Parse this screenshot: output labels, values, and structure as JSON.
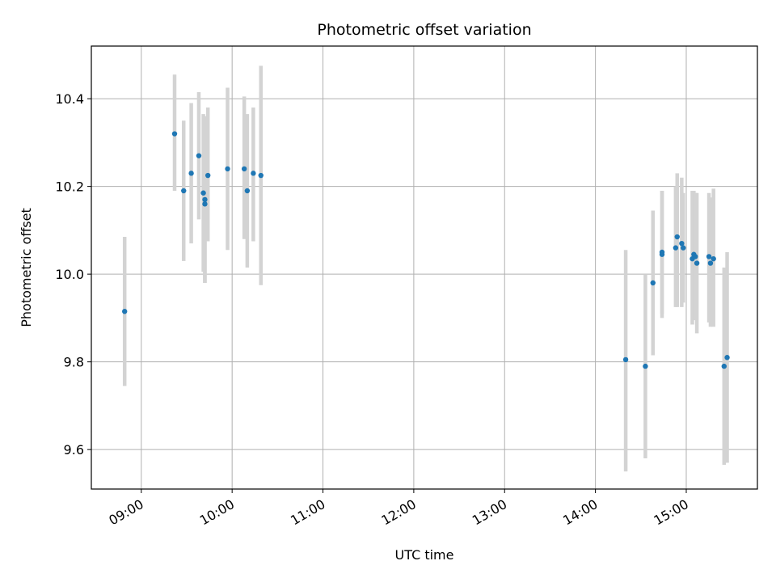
{
  "chart_data": {
    "type": "scatter",
    "title": "Photometric offset variation",
    "xlabel": "UTC time",
    "ylabel": "Photometric offset",
    "x_unit": "UTC time of day (HH:MM)",
    "xlim": [
      "08:27",
      "15:47"
    ],
    "ylim": [
      9.51,
      10.52
    ],
    "xticks": [
      "09:00",
      "10:00",
      "11:00",
      "12:00",
      "13:00",
      "14:00",
      "15:00"
    ],
    "yticks": [
      9.6,
      9.8,
      10.0,
      10.2,
      10.4
    ],
    "grid": true,
    "legend": "none",
    "colors": {
      "point": "#1f77b4",
      "errorbar": "#d3d3d3",
      "grid": "#b0b0b0",
      "axes": "#000000"
    },
    "series": [
      {
        "points": [
          {
            "x": "08:49",
            "y": 9.915,
            "yerr_low": 9.745,
            "yerr_high": 10.085
          },
          {
            "x": "09:22",
            "y": 10.32,
            "yerr_low": 10.19,
            "yerr_high": 10.455
          },
          {
            "x": "09:28",
            "y": 10.19,
            "yerr_low": 10.03,
            "yerr_high": 10.35
          },
          {
            "x": "09:33",
            "y": 10.23,
            "yerr_low": 10.07,
            "yerr_high": 10.39
          },
          {
            "x": "09:38",
            "y": 10.27,
            "yerr_low": 10.125,
            "yerr_high": 10.415
          },
          {
            "x": "09:41",
            "y": 10.185,
            "yerr_low": 10.005,
            "yerr_high": 10.365
          },
          {
            "x": "09:42",
            "y": 10.17,
            "yerr_low": 9.98,
            "yerr_high": 10.36
          },
          {
            "x": "09:42",
            "y": 10.16,
            "yerr_low": 9.98,
            "yerr_high": 10.34
          },
          {
            "x": "09:44",
            "y": 10.225,
            "yerr_low": 10.075,
            "yerr_high": 10.38
          },
          {
            "x": "09:57",
            "y": 10.24,
            "yerr_low": 10.055,
            "yerr_high": 10.425
          },
          {
            "x": "10:08",
            "y": 10.24,
            "yerr_low": 10.08,
            "yerr_high": 10.405
          },
          {
            "x": "10:10",
            "y": 10.19,
            "yerr_low": 10.015,
            "yerr_high": 10.365
          },
          {
            "x": "10:14",
            "y": 10.23,
            "yerr_low": 10.075,
            "yerr_high": 10.38
          },
          {
            "x": "10:19",
            "y": 10.225,
            "yerr_low": 9.975,
            "yerr_high": 10.475
          },
          {
            "x": "14:20",
            "y": 9.805,
            "yerr_low": 9.55,
            "yerr_high": 10.055
          },
          {
            "x": "14:33",
            "y": 9.79,
            "yerr_low": 9.58,
            "yerr_high": 10.0
          },
          {
            "x": "14:38",
            "y": 9.98,
            "yerr_low": 9.815,
            "yerr_high": 10.145
          },
          {
            "x": "14:44",
            "y": 10.045,
            "yerr_low": 9.9,
            "yerr_high": 10.19
          },
          {
            "x": "14:44",
            "y": 10.05,
            "yerr_low": 9.91,
            "yerr_high": 10.19
          },
          {
            "x": "14:53",
            "y": 10.06,
            "yerr_low": 9.925,
            "yerr_high": 10.2
          },
          {
            "x": "14:54",
            "y": 10.085,
            "yerr_low": 9.925,
            "yerr_high": 10.23
          },
          {
            "x": "14:57",
            "y": 10.07,
            "yerr_low": 9.925,
            "yerr_high": 10.22
          },
          {
            "x": "14:58",
            "y": 10.06,
            "yerr_low": 9.935,
            "yerr_high": 10.185
          },
          {
            "x": "15:04",
            "y": 10.035,
            "yerr_low": 9.885,
            "yerr_high": 10.19
          },
          {
            "x": "15:05",
            "y": 10.045,
            "yerr_low": 9.9,
            "yerr_high": 10.19
          },
          {
            "x": "15:06",
            "y": 10.04,
            "yerr_low": 9.895,
            "yerr_high": 10.185
          },
          {
            "x": "15:07",
            "y": 10.025,
            "yerr_low": 9.865,
            "yerr_high": 10.185
          },
          {
            "x": "15:15",
            "y": 10.04,
            "yerr_low": 9.89,
            "yerr_high": 10.185
          },
          {
            "x": "15:16",
            "y": 10.025,
            "yerr_low": 9.88,
            "yerr_high": 10.175
          },
          {
            "x": "15:18",
            "y": 10.035,
            "yerr_low": 9.88,
            "yerr_high": 10.195
          },
          {
            "x": "15:25",
            "y": 9.79,
            "yerr_low": 9.565,
            "yerr_high": 10.015
          },
          {
            "x": "15:27",
            "y": 9.81,
            "yerr_low": 9.57,
            "yerr_high": 10.05
          }
        ]
      }
    ]
  }
}
